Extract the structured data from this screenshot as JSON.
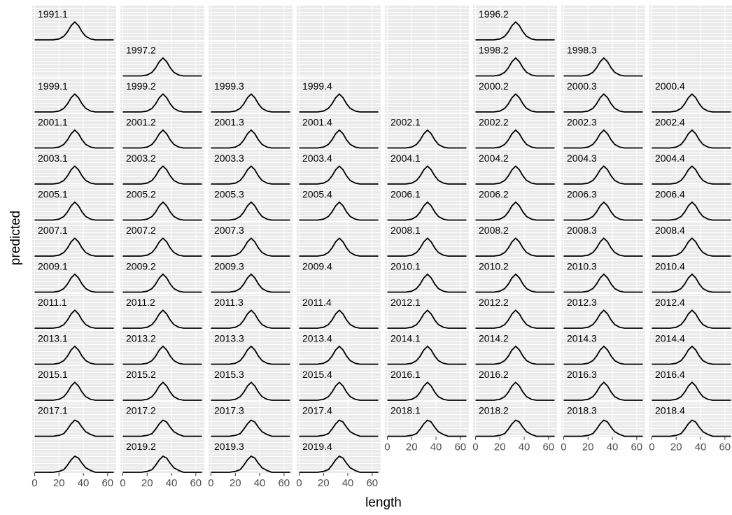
{
  "chart_data": {
    "type": "line",
    "x_label": "length",
    "y_label": "predicted",
    "xlim": [
      -2,
      67
    ],
    "xticks": [
      0,
      20,
      40,
      60
    ],
    "ylim": [
      0,
      0.36
    ],
    "x": [
      0,
      15,
      20,
      24,
      27,
      30,
      33,
      36,
      39,
      42,
      46,
      50,
      65
    ],
    "color": "#000000",
    "panels": [
      "1991.1",
      null,
      null,
      null,
      null,
      "1996.2",
      null,
      null,
      null,
      "1997.2",
      null,
      null,
      null,
      "1998.2",
      "1998.3",
      null,
      "1999.1",
      "1999.2",
      "1999.3",
      "1999.4",
      null,
      "2000.2",
      "2000.3",
      "2000.4",
      "2001.1",
      "2001.2",
      "2001.3",
      "2001.4",
      "2002.1",
      "2002.2",
      "2002.3",
      "2002.4",
      "2003.1",
      "2003.2",
      "2003.3",
      "2003.4",
      "2004.1",
      "2004.2",
      "2004.3",
      "2004.4",
      "2005.1",
      "2005.2",
      "2005.3",
      "2005.4",
      "2006.1",
      "2006.2",
      "2006.3",
      "2006.4",
      "2007.1",
      "2007.2",
      "2007.3",
      null,
      "2008.1",
      "2008.2",
      "2008.3",
      "2008.4",
      "2009.1",
      "2009.2",
      "2009.3",
      "2009.4",
      "2010.1",
      "2010.2",
      "2010.3",
      "2010.4",
      "2011.1",
      "2011.2",
      "2011.3",
      "2011.4",
      "2012.1",
      "2012.2",
      "2012.3",
      "2012.4",
      "2013.1",
      "2013.2",
      "2013.3",
      "2013.4",
      "2014.1",
      "2014.2",
      "2014.3",
      "2014.4",
      "2015.1",
      "2015.2",
      "2015.3",
      "2015.4",
      "2016.1",
      "2016.2",
      "2016.3",
      "2016.4",
      "2017.1",
      "2017.2",
      "2017.3",
      "2017.4",
      "2018.1",
      "2018.2",
      "2018.3",
      "2018.4",
      null,
      "2019.2",
      "2019.3",
      "2019.4"
    ],
    "curves": [
      [
        0,
        0,
        0.01,
        0.04,
        0.09,
        0.16,
        0.2,
        0.16,
        0.09,
        0.04,
        0.01,
        0,
        0
      ],
      null,
      null,
      null,
      null,
      [
        0,
        0,
        0.01,
        0.04,
        0.09,
        0.16,
        0.2,
        0.16,
        0.09,
        0.04,
        0.01,
        0,
        0
      ],
      null,
      null,
      null,
      [
        0,
        0,
        0.01,
        0.04,
        0.09,
        0.16,
        0.2,
        0.16,
        0.09,
        0.04,
        0.01,
        0,
        0
      ],
      null,
      null,
      null,
      [
        0,
        0,
        0.01,
        0.04,
        0.09,
        0.16,
        0.2,
        0.16,
        0.09,
        0.04,
        0.01,
        0,
        0
      ],
      [
        0,
        0,
        0.01,
        0.04,
        0.09,
        0.16,
        0.2,
        0.16,
        0.09,
        0.04,
        0.01,
        0,
        0
      ],
      null,
      [
        0,
        0,
        0.01,
        0.04,
        0.09,
        0.16,
        0.2,
        0.16,
        0.09,
        0.04,
        0.01,
        0,
        0
      ],
      [
        0,
        0,
        0.01,
        0.04,
        0.09,
        0.16,
        0.2,
        0.16,
        0.09,
        0.04,
        0.01,
        0,
        0
      ],
      [
        0,
        0,
        0.01,
        0.04,
        0.09,
        0.16,
        0.2,
        0.16,
        0.09,
        0.04,
        0.01,
        0,
        0
      ],
      [
        0,
        0,
        0.01,
        0.04,
        0.09,
        0.16,
        0.2,
        0.16,
        0.09,
        0.04,
        0.01,
        0,
        0
      ],
      null,
      [
        0,
        0,
        0.01,
        0.04,
        0.09,
        0.16,
        0.2,
        0.16,
        0.09,
        0.04,
        0.01,
        0,
        0
      ],
      [
        0,
        0,
        0.01,
        0.04,
        0.09,
        0.16,
        0.2,
        0.16,
        0.09,
        0.04,
        0.01,
        0,
        0
      ],
      [
        0,
        0,
        0.01,
        0.04,
        0.09,
        0.16,
        0.2,
        0.16,
        0.09,
        0.04,
        0.01,
        0,
        0
      ],
      [
        0,
        0,
        0.01,
        0.04,
        0.09,
        0.16,
        0.2,
        0.16,
        0.09,
        0.04,
        0.01,
        0,
        0
      ],
      [
        0,
        0,
        0.01,
        0.04,
        0.09,
        0.16,
        0.2,
        0.16,
        0.09,
        0.04,
        0.01,
        0,
        0
      ],
      [
        0,
        0,
        0.01,
        0.04,
        0.09,
        0.16,
        0.2,
        0.16,
        0.09,
        0.04,
        0.01,
        0,
        0
      ],
      [
        0,
        0,
        0.01,
        0.04,
        0.09,
        0.16,
        0.2,
        0.16,
        0.09,
        0.04,
        0.01,
        0,
        0
      ],
      [
        0,
        0,
        0.01,
        0.04,
        0.09,
        0.16,
        0.2,
        0.16,
        0.09,
        0.04,
        0.01,
        0,
        0
      ],
      [
        0,
        0,
        0.01,
        0.04,
        0.09,
        0.16,
        0.2,
        0.16,
        0.09,
        0.04,
        0.01,
        0,
        0
      ],
      [
        0,
        0,
        0.01,
        0.04,
        0.09,
        0.16,
        0.2,
        0.16,
        0.09,
        0.04,
        0.01,
        0,
        0
      ],
      [
        0,
        0,
        0.01,
        0.04,
        0.09,
        0.16,
        0.2,
        0.16,
        0.09,
        0.04,
        0.01,
        0,
        0
      ],
      [
        0,
        0,
        0.01,
        0.04,
        0.09,
        0.16,
        0.2,
        0.16,
        0.09,
        0.04,
        0.01,
        0,
        0
      ],
      [
        0,
        0,
        0.01,
        0.04,
        0.09,
        0.16,
        0.2,
        0.16,
        0.09,
        0.04,
        0.01,
        0,
        0
      ],
      [
        0,
        0,
        0.01,
        0.04,
        0.09,
        0.16,
        0.2,
        0.16,
        0.09,
        0.04,
        0.01,
        0,
        0
      ],
      [
        0,
        0,
        0.01,
        0.04,
        0.09,
        0.16,
        0.2,
        0.16,
        0.09,
        0.04,
        0.01,
        0,
        0
      ],
      [
        0,
        0,
        0.01,
        0.04,
        0.09,
        0.16,
        0.2,
        0.16,
        0.09,
        0.04,
        0.01,
        0,
        0
      ],
      [
        0,
        0,
        0.01,
        0.04,
        0.09,
        0.16,
        0.2,
        0.16,
        0.09,
        0.04,
        0.01,
        0,
        0
      ],
      [
        0,
        0,
        0.01,
        0.04,
        0.09,
        0.16,
        0.2,
        0.16,
        0.09,
        0.04,
        0.01,
        0,
        0
      ],
      [
        0,
        0,
        0.01,
        0.04,
        0.09,
        0.16,
        0.2,
        0.16,
        0.09,
        0.04,
        0.01,
        0,
        0
      ],
      [
        0,
        0,
        0.01,
        0.04,
        0.09,
        0.16,
        0.2,
        0.16,
        0.09,
        0.04,
        0.01,
        0,
        0
      ],
      [
        0,
        0,
        0.01,
        0.04,
        0.09,
        0.16,
        0.2,
        0.16,
        0.09,
        0.04,
        0.01,
        0,
        0
      ],
      [
        0,
        0,
        0.01,
        0.04,
        0.09,
        0.16,
        0.2,
        0.16,
        0.09,
        0.04,
        0.01,
        0,
        0
      ],
      [
        0,
        0,
        0.01,
        0.04,
        0.09,
        0.16,
        0.2,
        0.16,
        0.09,
        0.04,
        0.01,
        0,
        0
      ],
      [
        0,
        0,
        0.01,
        0.04,
        0.09,
        0.16,
        0.2,
        0.16,
        0.09,
        0.04,
        0.01,
        0,
        0
      ],
      [
        0,
        0,
        0.01,
        0.04,
        0.09,
        0.16,
        0.2,
        0.16,
        0.09,
        0.04,
        0.01,
        0,
        0
      ],
      [
        0,
        0,
        0.01,
        0.04,
        0.09,
        0.16,
        0.2,
        0.16,
        0.09,
        0.04,
        0.01,
        0,
        0
      ],
      [
        0,
        0,
        0.01,
        0.04,
        0.09,
        0.16,
        0.2,
        0.16,
        0.09,
        0.04,
        0.01,
        0,
        0
      ],
      [
        0,
        0,
        0.01,
        0.04,
        0.09,
        0.16,
        0.2,
        0.16,
        0.09,
        0.04,
        0.01,
        0,
        0
      ],
      [
        0,
        0,
        0.01,
        0.04,
        0.09,
        0.16,
        0.2,
        0.16,
        0.09,
        0.04,
        0.01,
        0,
        0
      ],
      [
        0,
        0,
        0.01,
        0.04,
        0.09,
        0.16,
        0.2,
        0.16,
        0.09,
        0.04,
        0.01,
        0,
        0
      ],
      [
        0,
        0,
        0.01,
        0.04,
        0.09,
        0.16,
        0.2,
        0.16,
        0.09,
        0.04,
        0.01,
        0,
        0
      ],
      [
        0,
        0,
        0.01,
        0.04,
        0.09,
        0.16,
        0.2,
        0.16,
        0.09,
        0.04,
        0.01,
        0,
        0
      ],
      [
        0,
        0,
        0.01,
        0.04,
        0.09,
        0.16,
        0.2,
        0.16,
        0.09,
        0.04,
        0.01,
        0,
        0
      ],
      [
        0,
        0,
        0.01,
        0.04,
        0.09,
        0.16,
        0.2,
        0.16,
        0.09,
        0.04,
        0.01,
        0,
        0
      ],
      [
        0,
        0,
        0.01,
        0.04,
        0.09,
        0.16,
        0.2,
        0.16,
        0.09,
        0.04,
        0.01,
        0,
        0
      ],
      [
        0,
        0,
        0.01,
        0.04,
        0.09,
        0.16,
        0.2,
        0.16,
        0.09,
        0.04,
        0.01,
        0,
        0
      ],
      [
        0,
        0,
        0.01,
        0.04,
        0.09,
        0.16,
        0.2,
        0.16,
        0.09,
        0.04,
        0.01,
        0,
        0
      ],
      [
        0,
        0,
        0.01,
        0.04,
        0.09,
        0.16,
        0.2,
        0.16,
        0.09,
        0.04,
        0.01,
        0,
        0
      ],
      null,
      [
        0,
        0,
        0.01,
        0.04,
        0.09,
        0.16,
        0.2,
        0.16,
        0.09,
        0.04,
        0.01,
        0,
        0
      ],
      [
        0,
        0,
        0.01,
        0.04,
        0.09,
        0.16,
        0.2,
        0.16,
        0.09,
        0.04,
        0.01,
        0,
        0
      ],
      [
        0,
        0,
        0.01,
        0.04,
        0.09,
        0.16,
        0.2,
        0.16,
        0.09,
        0.04,
        0.01,
        0,
        0
      ],
      [
        0,
        0,
        0.01,
        0.04,
        0.09,
        0.16,
        0.2,
        0.16,
        0.09,
        0.04,
        0.01,
        0,
        0
      ],
      [
        0,
        0,
        0.01,
        0.04,
        0.09,
        0.16,
        0.2,
        0.16,
        0.09,
        0.04,
        0.01,
        0,
        0
      ],
      [
        0,
        0,
        0.01,
        0.04,
        0.09,
        0.16,
        0.2,
        0.16,
        0.09,
        0.04,
        0.01,
        0,
        0
      ],
      [
        0,
        0,
        0.01,
        0.04,
        0.09,
        0.16,
        0.2,
        0.16,
        0.09,
        0.04,
        0.01,
        0,
        0
      ],
      [
        0,
        0,
        0.01,
        0.04,
        0.09,
        0.16,
        0.2,
        0.16,
        0.09,
        0.04,
        0.01,
        0,
        0
      ],
      [
        0,
        0,
        0.01,
        0.04,
        0.09,
        0.16,
        0.2,
        0.16,
        0.09,
        0.04,
        0.01,
        0,
        0
      ],
      [
        0,
        0,
        0.01,
        0.04,
        0.09,
        0.16,
        0.2,
        0.16,
        0.09,
        0.04,
        0.01,
        0,
        0
      ],
      [
        0,
        0,
        0.01,
        0.04,
        0.09,
        0.16,
        0.2,
        0.16,
        0.09,
        0.04,
        0.01,
        0,
        0
      ],
      [
        0,
        0,
        0.01,
        0.04,
        0.09,
        0.16,
        0.2,
        0.16,
        0.09,
        0.04,
        0.01,
        0,
        0
      ],
      [
        0,
        0,
        0.01,
        0.04,
        0.09,
        0.16,
        0.2,
        0.16,
        0.09,
        0.04,
        0.01,
        0,
        0
      ],
      [
        0,
        0,
        0.01,
        0.04,
        0.09,
        0.16,
        0.2,
        0.16,
        0.09,
        0.04,
        0.01,
        0,
        0
      ],
      [
        0,
        0,
        0.01,
        0.04,
        0.09,
        0.16,
        0.2,
        0.16,
        0.09,
        0.04,
        0.01,
        0,
        0
      ],
      [
        0,
        0,
        0.01,
        0.04,
        0.09,
        0.16,
        0.2,
        0.16,
        0.09,
        0.04,
        0.01,
        0,
        0
      ],
      [
        0,
        0,
        0.01,
        0.04,
        0.09,
        0.16,
        0.2,
        0.16,
        0.09,
        0.04,
        0.01,
        0,
        0
      ],
      [
        0,
        0,
        0.01,
        0.04,
        0.09,
        0.16,
        0.2,
        0.16,
        0.09,
        0.04,
        0.01,
        0,
        0
      ],
      [
        0,
        0,
        0.01,
        0.04,
        0.09,
        0.16,
        0.2,
        0.16,
        0.09,
        0.04,
        0.01,
        0,
        0
      ],
      [
        0,
        0,
        0.01,
        0.04,
        0.09,
        0.16,
        0.2,
        0.16,
        0.09,
        0.04,
        0.01,
        0,
        0
      ],
      [
        0,
        0,
        0.01,
        0.04,
        0.09,
        0.16,
        0.2,
        0.16,
        0.09,
        0.04,
        0.01,
        0,
        0
      ],
      [
        0,
        0,
        0.01,
        0.04,
        0.09,
        0.16,
        0.2,
        0.16,
        0.09,
        0.04,
        0.01,
        0,
        0
      ],
      [
        0,
        0,
        0.01,
        0.04,
        0.09,
        0.16,
        0.2,
        0.16,
        0.09,
        0.04,
        0.01,
        0,
        0
      ],
      [
        0,
        0,
        0.01,
        0.04,
        0.09,
        0.16,
        0.2,
        0.16,
        0.09,
        0.04,
        0.01,
        0,
        0
      ],
      [
        0,
        0,
        0.01,
        0.04,
        0.09,
        0.16,
        0.2,
        0.16,
        0.09,
        0.04,
        0.01,
        0,
        0
      ],
      [
        0,
        0,
        0.01,
        0.04,
        0.09,
        0.16,
        0.2,
        0.16,
        0.09,
        0.04,
        0.01,
        0,
        0
      ],
      [
        0,
        0,
        0.01,
        0.04,
        0.09,
        0.16,
        0.2,
        0.16,
        0.09,
        0.04,
        0.01,
        0,
        0
      ],
      [
        0,
        0,
        0.01,
        0.04,
        0.09,
        0.16,
        0.2,
        0.16,
        0.09,
        0.04,
        0.01,
        0,
        0
      ],
      [
        0,
        0,
        0.01,
        0.03,
        0.08,
        0.14,
        0.18,
        0.16,
        0.1,
        0.05,
        0.02,
        0,
        0
      ],
      [
        0,
        0,
        0.01,
        0.03,
        0.08,
        0.14,
        0.18,
        0.16,
        0.1,
        0.05,
        0.02,
        0,
        0
      ],
      [
        0,
        0,
        0.01,
        0.03,
        0.08,
        0.14,
        0.18,
        0.16,
        0.1,
        0.05,
        0.02,
        0,
        0
      ],
      [
        0,
        0,
        0.01,
        0.03,
        0.08,
        0.14,
        0.18,
        0.16,
        0.1,
        0.05,
        0.02,
        0,
        0
      ],
      [
        0,
        0,
        0.01,
        0.03,
        0.08,
        0.14,
        0.18,
        0.16,
        0.1,
        0.05,
        0.02,
        0,
        0
      ],
      [
        0,
        0,
        0.01,
        0.03,
        0.08,
        0.14,
        0.18,
        0.16,
        0.1,
        0.05,
        0.02,
        0,
        0
      ],
      [
        0,
        0,
        0.01,
        0.03,
        0.08,
        0.14,
        0.18,
        0.16,
        0.1,
        0.05,
        0.02,
        0,
        0
      ],
      [
        0,
        0,
        0.01,
        0.03,
        0.08,
        0.14,
        0.18,
        0.16,
        0.1,
        0.05,
        0.02,
        0,
        0
      ],
      [
        0,
        0,
        0.01,
        0.03,
        0.08,
        0.14,
        0.18,
        0.16,
        0.1,
        0.05,
        0.02,
        0,
        0
      ],
      [
        0,
        0,
        0.01,
        0.03,
        0.08,
        0.14,
        0.18,
        0.16,
        0.1,
        0.05,
        0.02,
        0,
        0
      ],
      [
        0,
        0,
        0.01,
        0.03,
        0.08,
        0.14,
        0.18,
        0.16,
        0.1,
        0.05,
        0.02,
        0,
        0
      ],
      [
        0,
        0,
        0.01,
        0.03,
        0.08,
        0.14,
        0.18,
        0.16,
        0.1,
        0.05,
        0.02,
        0,
        0
      ],
      [
        0,
        0,
        0.01,
        0.03,
        0.08,
        0.14,
        0.18,
        0.16,
        0.1,
        0.05,
        0.02,
        0,
        0
      ],
      [
        0,
        0,
        0.01,
        0.03,
        0.08,
        0.14,
        0.18,
        0.16,
        0.1,
        0.05,
        0.02,
        0,
        0
      ],
      [
        0,
        0,
        0.01,
        0.03,
        0.08,
        0.14,
        0.18,
        0.16,
        0.1,
        0.05,
        0.02,
        0,
        0
      ],
      [
        0,
        0,
        0.01,
        0.03,
        0.08,
        0.14,
        0.18,
        0.16,
        0.1,
        0.05,
        0.02,
        0,
        0
      ],
      null,
      [
        0,
        0,
        0.01,
        0.03,
        0.08,
        0.14,
        0.18,
        0.16,
        0.1,
        0.05,
        0.02,
        0,
        0
      ],
      [
        0,
        0,
        0.01,
        0.03,
        0.08,
        0.14,
        0.18,
        0.16,
        0.1,
        0.05,
        0.02,
        0,
        0
      ],
      [
        0,
        0,
        0.01,
        0.03,
        0.08,
        0.14,
        0.18,
        0.16,
        0.1,
        0.05,
        0.02,
        0,
        0
      ]
    ]
  }
}
